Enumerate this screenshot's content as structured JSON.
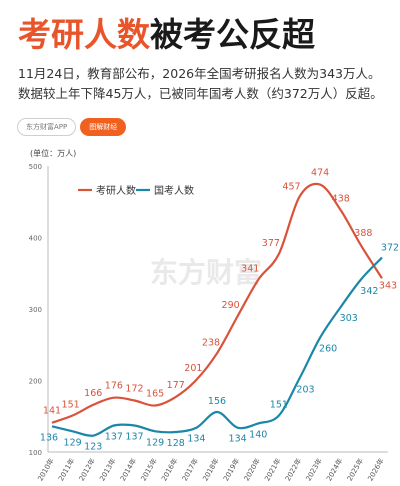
{
  "headline": {
    "part1": "考研人数",
    "part2": "被考公反超"
  },
  "summary": "11月24日，教育部公布，2026年全国考研报名人数为343万人。数据较上年下降45万人，已被同年国考人数（约372万人）反超。",
  "tabs": {
    "left": "东方财富APP",
    "right": "图解财经"
  },
  "watermark": "东方财富",
  "chart_data": {
    "type": "line",
    "unit_label": "(单位：万人)",
    "ylim": [
      100,
      500
    ],
    "yticks": [
      100,
      200,
      300,
      400,
      500
    ],
    "x": [
      "2010年",
      "2011年",
      "2012年",
      "2013年",
      "2014年",
      "2015年",
      "2016年",
      "2017年",
      "2018年",
      "2019年",
      "2020年",
      "2021年",
      "2022年",
      "2023年",
      "2024年",
      "2025年",
      "2026年"
    ],
    "legend_position": "top-left",
    "series": [
      {
        "name": "考研人数",
        "color": "#d9533a",
        "values": [
          141,
          151,
          166,
          176,
          172,
          165,
          177,
          201,
          238,
          290,
          341,
          377,
          457,
          474,
          438,
          388,
          343
        ]
      },
      {
        "name": "国考人数",
        "color": "#1b87a8",
        "values": [
          136,
          129,
          123,
          137,
          137,
          129,
          128,
          134,
          156,
          134,
          140,
          151,
          203,
          260,
          303,
          342,
          372
        ]
      }
    ]
  }
}
